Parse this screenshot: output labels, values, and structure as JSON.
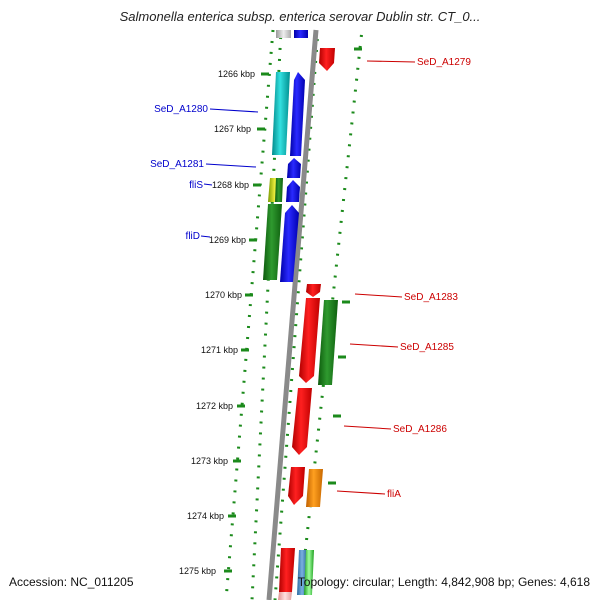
{
  "title": "Salmonella enterica subsp. enterica serovar Dublin str. CT_0...",
  "footer": {
    "accession": "Accession: NC_011205",
    "topology": "Topology: circular; Length: 4,842,908 bp; Genes: 4,618"
  },
  "colors": {
    "backbone": "#8a8a8a",
    "ticks": "#1b8a1b",
    "left_label": "#0000cc",
    "right_label": "#cc0000"
  },
  "kbp_labels": [
    "1266 kbp",
    "1267 kbp",
    "1268 kbp",
    "1269 kbp",
    "1270 kbp",
    "1271 kbp",
    "1272 kbp",
    "1273 kbp",
    "1274 kbp",
    "1275 kbp"
  ],
  "left_labels": [
    "SeD_A1280",
    "SeD_A1281",
    "fliS",
    "fliD"
  ],
  "right_labels": [
    "SeD_A1279",
    "SeD_A1283",
    "SeD_A1285",
    "SeD_A1286",
    "fliA"
  ]
}
